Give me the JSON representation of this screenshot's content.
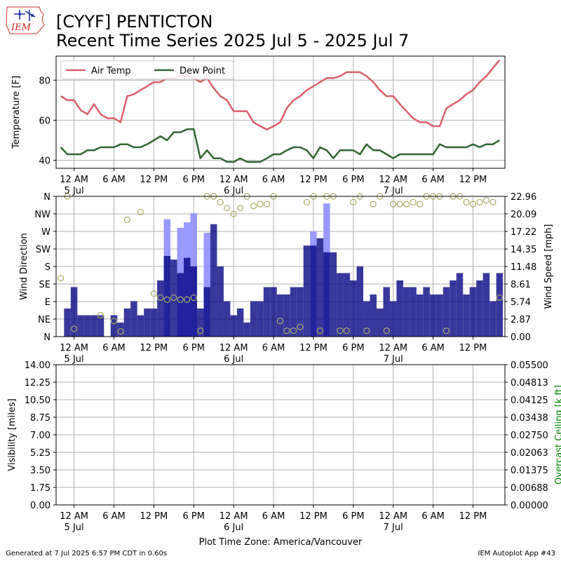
{
  "header": {
    "logo_text": "IEM",
    "title_line1": "[CYYF] PENTICTON",
    "title_line2": "Recent Time Series 2025 Jul 5 - 2025 Jul 7"
  },
  "footer": {
    "generated": "Generated at 7 Jul 2025 6:57 PM CDT in 0.60s",
    "app": "IEM Autoplot App #43"
  },
  "colors": {
    "air_temp": "#d9606a",
    "dew_point": "#336633",
    "gust_bar": "#9999ff",
    "speed_bar": "#000080",
    "direction_marker": "#aaaa66",
    "ceiling_axis": "#008000"
  },
  "chart_data": [
    {
      "type": "line",
      "ylabel": "Temperature [F]",
      "ylim": [
        36,
        92
      ],
      "yticks": [
        "40",
        "60",
        "80"
      ],
      "grid": true,
      "legend_position": "top-left",
      "x_ticks": [
        "12 AM",
        "6 AM",
        "12 PM",
        "6 PM",
        "12 AM",
        "6 AM",
        "12 PM",
        "6 PM",
        "12 AM",
        "6 AM",
        "12 PM"
      ],
      "x_date_labels": [
        "5 Jul",
        "6 Jul",
        "7 Jul"
      ],
      "series": [
        {
          "name": "Air Temp",
          "x_hours": [
            -2,
            -1,
            0,
            1,
            2,
            3,
            4,
            5,
            6,
            7,
            8,
            9,
            10,
            11,
            12,
            13,
            14,
            15,
            16,
            17,
            18,
            19,
            20,
            21,
            22,
            23,
            24,
            25,
            26,
            27,
            28,
            29,
            30,
            31,
            32,
            33,
            34,
            35,
            36,
            37,
            38,
            39,
            40,
            41,
            42,
            43,
            44,
            45,
            46,
            47,
            48,
            49,
            50,
            51,
            52,
            53,
            54,
            55,
            56,
            57,
            58,
            59,
            60,
            61,
            62,
            63,
            64
          ],
          "values": [
            72,
            70,
            70,
            65,
            63,
            68,
            63,
            61,
            61,
            59,
            72,
            73,
            75,
            77,
            79,
            79,
            81,
            81,
            82,
            82,
            81,
            79,
            81,
            76,
            72,
            70,
            64.5,
            64.5,
            64.5,
            59,
            57,
            55.4,
            57,
            59,
            66,
            70,
            72,
            75,
            77,
            79,
            81,
            81,
            82,
            84,
            84,
            84,
            82,
            79,
            75,
            72,
            72,
            68,
            64.5,
            61,
            59,
            59,
            57,
            57,
            66,
            68,
            70,
            73,
            75,
            79,
            82,
            86,
            90
          ]
        },
        {
          "name": "Dew Point",
          "x_hours": [
            -2,
            -1,
            0,
            1,
            2,
            3,
            4,
            5,
            6,
            7,
            8,
            9,
            10,
            11,
            12,
            13,
            14,
            15,
            16,
            17,
            18,
            19,
            20,
            21,
            22,
            23,
            24,
            25,
            26,
            27,
            28,
            29,
            30,
            31,
            32,
            33,
            34,
            35,
            36,
            37,
            38,
            39,
            40,
            41,
            42,
            43,
            44,
            45,
            46,
            47,
            48,
            49,
            50,
            51,
            52,
            53,
            54,
            55,
            56,
            57,
            58,
            59,
            60,
            61,
            62,
            63,
            64
          ],
          "values": [
            46.5,
            43,
            43,
            43,
            45,
            45,
            46.5,
            46.5,
            46.5,
            48,
            48,
            46.5,
            46.5,
            48,
            50,
            52,
            50,
            54,
            54,
            55.5,
            55.5,
            41,
            45,
            41,
            41,
            39.2,
            39.2,
            41,
            39.2,
            39.2,
            39.2,
            41,
            43,
            43,
            45,
            46.5,
            46.5,
            45,
            41,
            46.5,
            45,
            41,
            45,
            45,
            45,
            43,
            48,
            45,
            45,
            43,
            41,
            43,
            43,
            43,
            43,
            43,
            43,
            48,
            46.5,
            46.5,
            46.5,
            46.5,
            48,
            46.5,
            48,
            48,
            50
          ]
        }
      ]
    },
    {
      "type": "bar",
      "ylabel_left": "Wind Direction",
      "ylabel_right": "Wind Speed [mph]",
      "direction_labels": [
        "N",
        "NE",
        "E",
        "SE",
        "S",
        "SW",
        "W",
        "NW",
        "N"
      ],
      "speed_ticks": [
        "0.00",
        "2.87",
        "5.74",
        "8.61",
        "11.48",
        "14.35",
        "17.22",
        "20.09",
        "22.96"
      ],
      "speed_ylim": [
        0,
        22.96
      ],
      "grid": true,
      "x_ticks": [
        "12 AM",
        "6 AM",
        "12 PM",
        "6 PM",
        "12 AM",
        "6 AM",
        "12 PM",
        "6 PM",
        "12 AM",
        "6 AM",
        "12 PM"
      ],
      "x_date_labels": [
        "5 Jul",
        "6 Jul",
        "7 Jul"
      ],
      "bar_start_hour": -2,
      "speed_mph": [
        0,
        4.6,
        8.1,
        3.5,
        3.5,
        3.5,
        3.5,
        0,
        3.5,
        2.3,
        4.6,
        5.8,
        3.5,
        4.6,
        4.6,
        9.2,
        13.2,
        12.6,
        10.4,
        12.9,
        11.5,
        4.6,
        8.1,
        18.4,
        11.5,
        5.8,
        3.5,
        4.6,
        2.3,
        5.8,
        5.8,
        8.1,
        8.1,
        6.9,
        6.9,
        8.1,
        8.1,
        14.9,
        14.9,
        16.1,
        13.8,
        13.8,
        10.4,
        10.4,
        9.2,
        11.5,
        5.8,
        6.9,
        4.6,
        8.1,
        5.8,
        9.2,
        8.1,
        8.1,
        6.9,
        8.1,
        6.9,
        6.9,
        8.1,
        9.2,
        10.4,
        6.9,
        8.1,
        9.2,
        10.4,
        5.8,
        10.4
      ],
      "gust_mph": [
        0,
        0,
        0,
        0,
        0,
        0,
        0,
        0,
        0,
        0,
        0,
        0,
        0,
        0,
        0,
        0,
        19.2,
        0,
        17.8,
        18.7,
        20.2,
        0,
        17,
        0,
        0,
        0,
        0,
        0,
        0,
        0,
        0,
        0,
        0,
        0,
        0,
        0,
        0,
        0,
        17.2,
        0,
        21.8,
        0,
        0,
        0,
        0,
        0,
        0,
        0,
        0,
        0,
        0,
        0,
        0,
        0,
        0,
        0,
        0,
        0,
        0,
        0,
        0,
        0,
        0,
        0,
        0,
        0,
        0
      ],
      "dir_hours": [
        -2,
        -1,
        0,
        4,
        6,
        7,
        8,
        10,
        12,
        13,
        14,
        15,
        16,
        17,
        18,
        19,
        20,
        21,
        22,
        23,
        24,
        25,
        26,
        27,
        28,
        29,
        30,
        31,
        32,
        33,
        34,
        35,
        36,
        37,
        38,
        39,
        40,
        41,
        42,
        43,
        44,
        45,
        46,
        47,
        48,
        49,
        50,
        51,
        52,
        53,
        54,
        55,
        56,
        57,
        58,
        59,
        60,
        61,
        62,
        63,
        64
      ],
      "dir_deg": [
        150,
        360,
        20,
        55,
        40,
        13,
        300,
        320,
        110,
        100,
        95,
        100,
        95,
        95,
        100,
        15,
        360,
        360,
        345,
        330,
        315,
        330,
        360,
        335,
        340,
        340,
        360,
        40,
        15,
        15,
        25,
        345,
        360,
        15,
        360,
        360,
        15,
        15,
        345,
        360,
        15,
        340,
        360,
        15,
        340,
        340,
        340,
        345,
        340,
        360,
        360,
        360,
        15,
        360,
        360,
        345,
        340,
        345,
        350,
        345,
        100
      ]
    },
    {
      "type": "line",
      "ylabel_left": "Visibility [miles]",
      "ylabel_right": "Overcast Ceiling [k ft]",
      "visibility_ticks": [
        "0.00",
        "1.75",
        "3.50",
        "5.25",
        "7.00",
        "8.75",
        "10.50",
        "12.25",
        "14.00"
      ],
      "ceiling_ticks": [
        "0.00000",
        "0.00688",
        "0.01375",
        "0.02063",
        "0.02750",
        "0.03438",
        "0.04125",
        "0.04813",
        "0.05500"
      ],
      "visibility_ylim": [
        0,
        14
      ],
      "ceiling_ylim": [
        0,
        0.055
      ],
      "grid": true,
      "x_ticks": [
        "12 AM",
        "6 AM",
        "12 PM",
        "6 PM",
        "12 AM",
        "6 AM",
        "12 PM",
        "6 PM",
        "12 AM",
        "6 AM",
        "12 PM"
      ],
      "x_date_labels": [
        "5 Jul",
        "6 Jul",
        "7 Jul"
      ],
      "xlabel": "Plot Time Zone: America/Vancouver",
      "series": []
    }
  ]
}
